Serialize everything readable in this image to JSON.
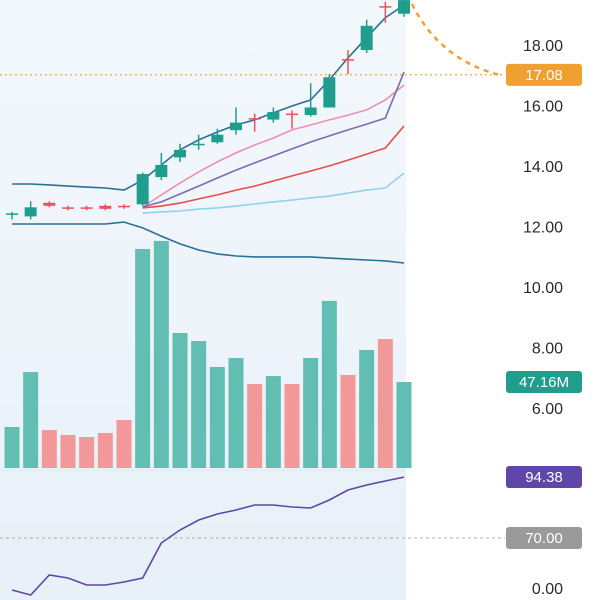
{
  "chart_data": {
    "type": "candlestick",
    "up_color": "#1f9e8e",
    "down_color": "#e8545a",
    "open": [
      12.45,
      12.4,
      12.85,
      12.7,
      12.7,
      12.75,
      12.75,
      12.8,
      13.7,
      14.35,
      14.75,
      14.85,
      15.25,
      15.65,
      15.6,
      15.8,
      15.75,
      16.0,
      17.6,
      17.9,
      19.35,
      19.1
    ],
    "high": [
      12.55,
      12.9,
      12.9,
      12.75,
      12.75,
      12.8,
      12.8,
      13.85,
      14.5,
      14.8,
      15.1,
      15.3,
      16.0,
      15.8,
      16.0,
      15.9,
      16.8,
      17.1,
      17.9,
      18.9,
      19.5,
      19.6
    ],
    "low": [
      12.3,
      12.3,
      12.7,
      12.6,
      12.6,
      12.6,
      12.65,
      12.75,
      13.6,
      14.2,
      14.6,
      14.8,
      15.1,
      15.2,
      15.5,
      15.3,
      15.7,
      16.0,
      17.1,
      17.8,
      18.8,
      19.0
    ],
    "close": [
      12.5,
      12.7,
      12.75,
      12.65,
      12.65,
      12.65,
      12.7,
      13.8,
      14.1,
      14.6,
      14.8,
      15.1,
      15.5,
      15.6,
      15.85,
      15.75,
      16.0,
      17.0,
      17.55,
      18.7,
      19.3,
      19.55
    ],
    "ylim": [
      0,
      19.55
    ],
    "yticks": [
      {
        "value": 6,
        "label": "6.00"
      },
      {
        "value": 8,
        "label": "8.00"
      },
      {
        "value": 10,
        "label": "10.00"
      },
      {
        "value": 12,
        "label": "12.00"
      },
      {
        "value": 14,
        "label": "14.00"
      },
      {
        "value": 16,
        "label": "16.00"
      },
      {
        "value": 18,
        "label": "18.00"
      }
    ],
    "price_line": {
      "value": 17.08,
      "color": "#f0a030"
    },
    "overlays": [
      {
        "color": "#2b6f9a",
        "values": [
          13.47,
          13.47,
          13.44,
          13.4,
          13.37,
          13.34,
          13.27,
          13.6,
          14.1,
          14.6,
          14.93,
          15.19,
          15.42,
          15.59,
          15.82,
          16.05,
          16.25,
          16.91,
          17.64,
          18.31,
          18.97,
          19.39
        ]
      },
      {
        "color": "#2b6f9a",
        "values": [
          12.15,
          12.15,
          12.15,
          12.15,
          12.15,
          12.15,
          12.21,
          12.02,
          11.75,
          11.49,
          11.29,
          11.16,
          11.09,
          11.06,
          11.06,
          11.06,
          11.06,
          11.02,
          10.99,
          10.96,
          10.93,
          10.86
        ]
      },
      {
        "color": "#ee8fb0",
        "values": [
          null,
          null,
          null,
          null,
          null,
          null,
          null,
          12.71,
          13.11,
          13.5,
          13.87,
          14.2,
          14.5,
          14.76,
          14.99,
          15.26,
          15.42,
          15.59,
          15.75,
          15.92,
          16.25,
          16.74
        ]
      },
      {
        "color": "#7b6bb5",
        "values": [
          null,
          null,
          null,
          null,
          null,
          null,
          null,
          12.71,
          12.88,
          13.14,
          13.4,
          13.67,
          13.93,
          14.17,
          14.4,
          14.63,
          14.86,
          15.06,
          15.26,
          15.45,
          15.65,
          17.17
        ]
      },
      {
        "color": "#e84c4c",
        "values": [
          null,
          null,
          null,
          null,
          null,
          null,
          null,
          12.68,
          12.74,
          12.84,
          12.98,
          13.11,
          13.27,
          13.4,
          13.57,
          13.74,
          13.9,
          14.07,
          14.26,
          14.46,
          14.66,
          15.39
        ]
      },
      {
        "color": "#8fd3ee",
        "values": [
          null,
          null,
          null,
          null,
          null,
          null,
          null,
          12.51,
          12.55,
          12.58,
          12.64,
          12.68,
          12.74,
          12.81,
          12.88,
          12.94,
          13.01,
          13.07,
          13.17,
          13.27,
          13.34,
          13.83
        ]
      }
    ],
    "volume": {
      "values": [
        22.5,
        52.6,
        20.8,
        18.1,
        17.0,
        19.2,
        26.3,
        120.1,
        124.5,
        74.0,
        69.6,
        55.4,
        60.3,
        46.1,
        50.4,
        46.1,
        60.3,
        91.6,
        51.0,
        64.7,
        70.7,
        47.16
      ],
      "value_labels": [
        null,
        null,
        null,
        null,
        null,
        null,
        null,
        null,
        null,
        null,
        null,
        null,
        null,
        null,
        null,
        null,
        null,
        null,
        null,
        null,
        null,
        "47.16M"
      ],
      "ylim": [
        0,
        150
      ],
      "up_color": "#62bdb3",
      "down_color": "#f29898",
      "tag_color": "#1f9e8e"
    },
    "rsi": {
      "values": [
        49.2,
        47.2,
        55.2,
        54.0,
        51.2,
        51.2,
        52.4,
        54.0,
        68.0,
        73.2,
        77.2,
        79.6,
        81.2,
        83.2,
        83.2,
        82.4,
        82.0,
        85.2,
        89.2,
        91.2,
        92.8,
        94.38
      ],
      "color": "#5e47a8",
      "ylim": [
        45,
        97
      ],
      "yticks": [
        {
          "value": 70,
          "label": "70.00"
        }
      ],
      "axis_label": "0.00"
    }
  }
}
